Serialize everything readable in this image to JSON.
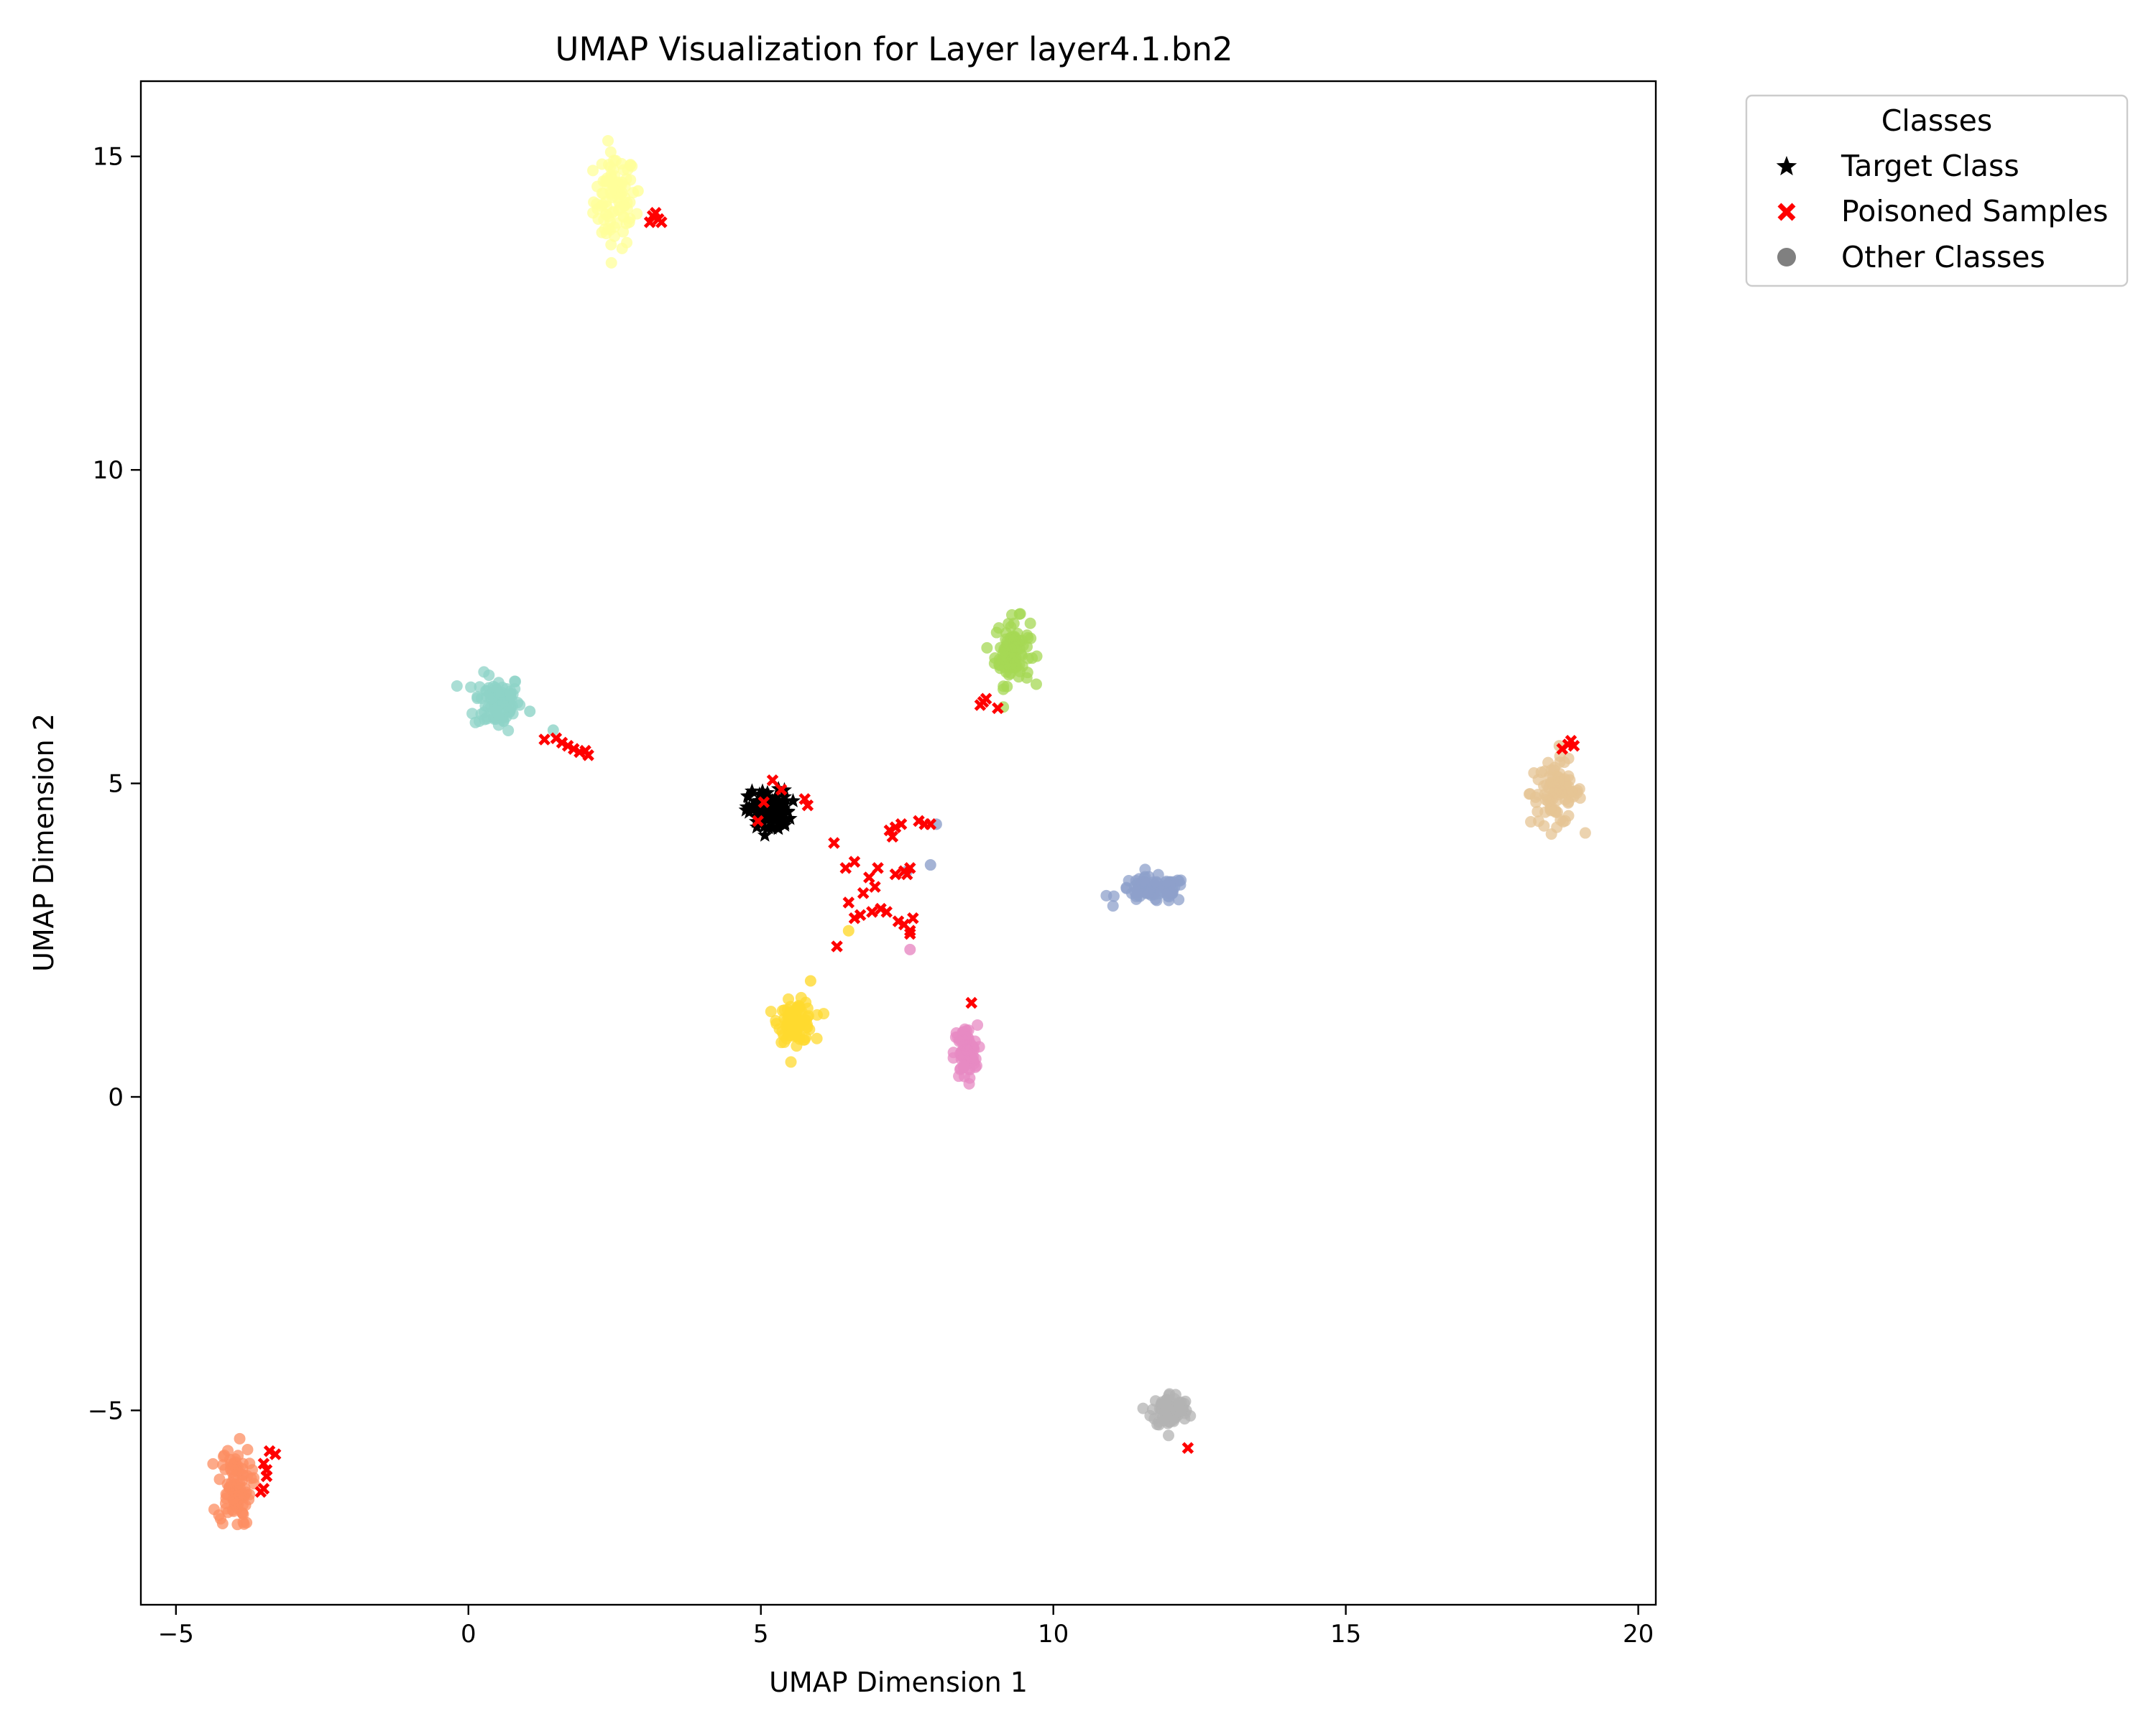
{
  "chart_data": {
    "type": "scatter",
    "title": "UMAP Visualization for Layer layer4.1.bn2",
    "xlabel": "UMAP Dimension 1",
    "ylabel": "UMAP Dimension 2",
    "xlim": [
      -5.6,
      20.3
    ],
    "ylim": [
      -8.1,
      16.2
    ],
    "x_ticks": [
      -5,
      0,
      5,
      10,
      15,
      20
    ],
    "y_ticks": [
      -5,
      0,
      5,
      10,
      15
    ],
    "x_tick_labels": [
      "−5",
      "0",
      "5",
      "10",
      "15",
      "20"
    ],
    "y_tick_labels": [
      "−5",
      "0",
      "5",
      "10",
      "15"
    ],
    "grid": false,
    "legend": {
      "title": "Classes",
      "placement": "outside top-right",
      "entries": [
        {
          "label": "Target Class",
          "marker": "star",
          "color": "#000000"
        },
        {
          "label": "Poisoned Samples",
          "marker": "x",
          "color": "#ff0000"
        },
        {
          "label": "Other Classes",
          "marker": "circle",
          "color": "#808080"
        }
      ]
    },
    "clusters": [
      {
        "role": "other",
        "color": "#ffff99",
        "center": [
          2.5,
          14.3
        ],
        "spread": [
          0.18,
          0.38
        ],
        "count": 90
      },
      {
        "role": "other",
        "color": "#8dd3c7",
        "center": [
          0.5,
          6.3
        ],
        "spread": [
          0.2,
          0.22
        ],
        "count": 90
      },
      {
        "role": "other",
        "color": "#a6d854",
        "center": [
          9.3,
          7.1
        ],
        "spread": [
          0.15,
          0.26
        ],
        "count": 90
      },
      {
        "role": "other",
        "color": "#e5c494",
        "center": [
          18.6,
          4.85
        ],
        "spread": [
          0.22,
          0.25
        ],
        "count": 90
      },
      {
        "role": "other",
        "color": "#8da0cb",
        "center": [
          11.7,
          3.3
        ],
        "spread": [
          0.3,
          0.1
        ],
        "count": 90
      },
      {
        "role": "other",
        "color": "#ffd92f",
        "center": [
          5.6,
          1.2
        ],
        "spread": [
          0.15,
          0.16
        ],
        "count": 90
      },
      {
        "role": "other",
        "color": "#e78ac3",
        "center": [
          8.5,
          0.7
        ],
        "spread": [
          0.1,
          0.22
        ],
        "count": 80
      },
      {
        "role": "other",
        "color": "#b3b3b3",
        "center": [
          12.0,
          -5.0
        ],
        "spread": [
          0.16,
          0.14
        ],
        "count": 80
      },
      {
        "role": "other",
        "color": "#fc8d62",
        "center": [
          -4.0,
          -6.2
        ],
        "spread": [
          0.14,
          0.32
        ],
        "count": 90
      },
      {
        "role": "target",
        "color": "#000000",
        "center": [
          5.15,
          4.55
        ],
        "spread": [
          0.18,
          0.17
        ],
        "count": 90
      }
    ],
    "other_points": [
      {
        "color": "#8da0cb",
        "x": [
          7.9,
          7.5,
          8.0
        ],
        "y": [
          3.7,
          3.6,
          4.35
        ]
      },
      {
        "color": "#e78ac3",
        "x": [
          7.55
        ],
        "y": [
          2.35
        ]
      },
      {
        "color": "#ffd92f",
        "x": [
          6.5,
          5.85
        ],
        "y": [
          2.65,
          1.85
        ]
      },
      {
        "color": "#ffff99",
        "x": [
          2.9,
          2.75
        ],
        "y": [
          14.45,
          13.95
        ]
      },
      {
        "color": "#8dd3c7",
        "x": [
          1.45,
          1.05
        ],
        "y": [
          5.85,
          6.15
        ]
      },
      {
        "color": "#e5c494",
        "x": [
          18.65
        ],
        "y": [
          5.6
        ]
      }
    ],
    "poisoned_points": {
      "color": "#ff0000",
      "x": [
        3.1,
        3.15,
        3.2,
        3.25,
        3.3,
        1.3,
        1.5,
        1.6,
        1.7,
        1.8,
        1.9,
        2.0,
        2.05,
        8.75,
        8.8,
        8.85,
        9.05,
        18.7,
        18.8,
        18.85,
        18.9,
        -3.5,
        -3.45,
        -3.55,
        -3.5,
        -3.4,
        -3.3,
        -3.45,
        12.3,
        8.6,
        5.05,
        5.2,
        5.35,
        4.95,
        5.75,
        5.8,
        6.25,
        6.45,
        6.6,
        6.75,
        6.85,
        6.95,
        7.05,
        7.15,
        7.2,
        7.3,
        7.4,
        7.45,
        7.5,
        7.55,
        7.6,
        7.35,
        7.45,
        7.55,
        6.5,
        6.6,
        6.9,
        7.0,
        7.25,
        7.7,
        7.8,
        7.9,
        6.3,
        6.7,
        7.3,
        7.55
      ],
      "y": [
        13.95,
        14.05,
        14.1,
        14.0,
        13.95,
        5.7,
        5.72,
        5.65,
        5.6,
        5.55,
        5.5,
        5.52,
        5.45,
        6.25,
        6.3,
        6.35,
        6.2,
        5.55,
        5.62,
        5.68,
        5.6,
        -5.85,
        -5.95,
        -6.3,
        -6.25,
        -5.65,
        -5.7,
        -6.05,
        -5.6,
        1.5,
        4.7,
        5.05,
        4.9,
        4.4,
        4.75,
        4.65,
        4.05,
        3.65,
        3.75,
        3.25,
        3.5,
        3.35,
        3.0,
        2.95,
        4.25,
        4.3,
        4.35,
        3.6,
        3.55,
        3.65,
        2.85,
        2.8,
        2.75,
        2.65,
        3.1,
        2.85,
        2.95,
        3.65,
        4.15,
        4.4,
        4.35,
        4.35,
        2.4,
        2.9,
        3.55,
        2.6
      ]
    }
  }
}
